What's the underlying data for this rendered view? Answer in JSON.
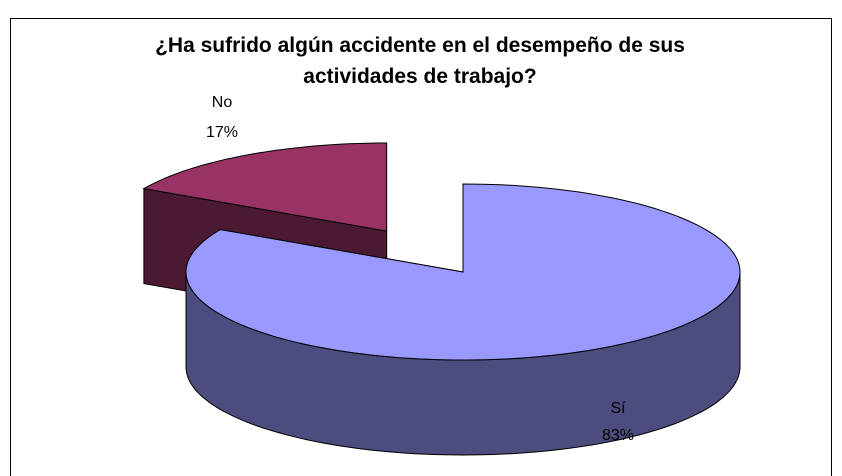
{
  "chart_data": {
    "type": "pie3d",
    "title": "¿Ha sufrido algún accidente en el desempeño de sus actividades de trabajo?",
    "categories": [
      "Sí",
      "No"
    ],
    "values": [
      83,
      17
    ],
    "value_labels": [
      "83%",
      "17%"
    ],
    "colors": [
      "#9999ff",
      "#993366"
    ]
  }
}
